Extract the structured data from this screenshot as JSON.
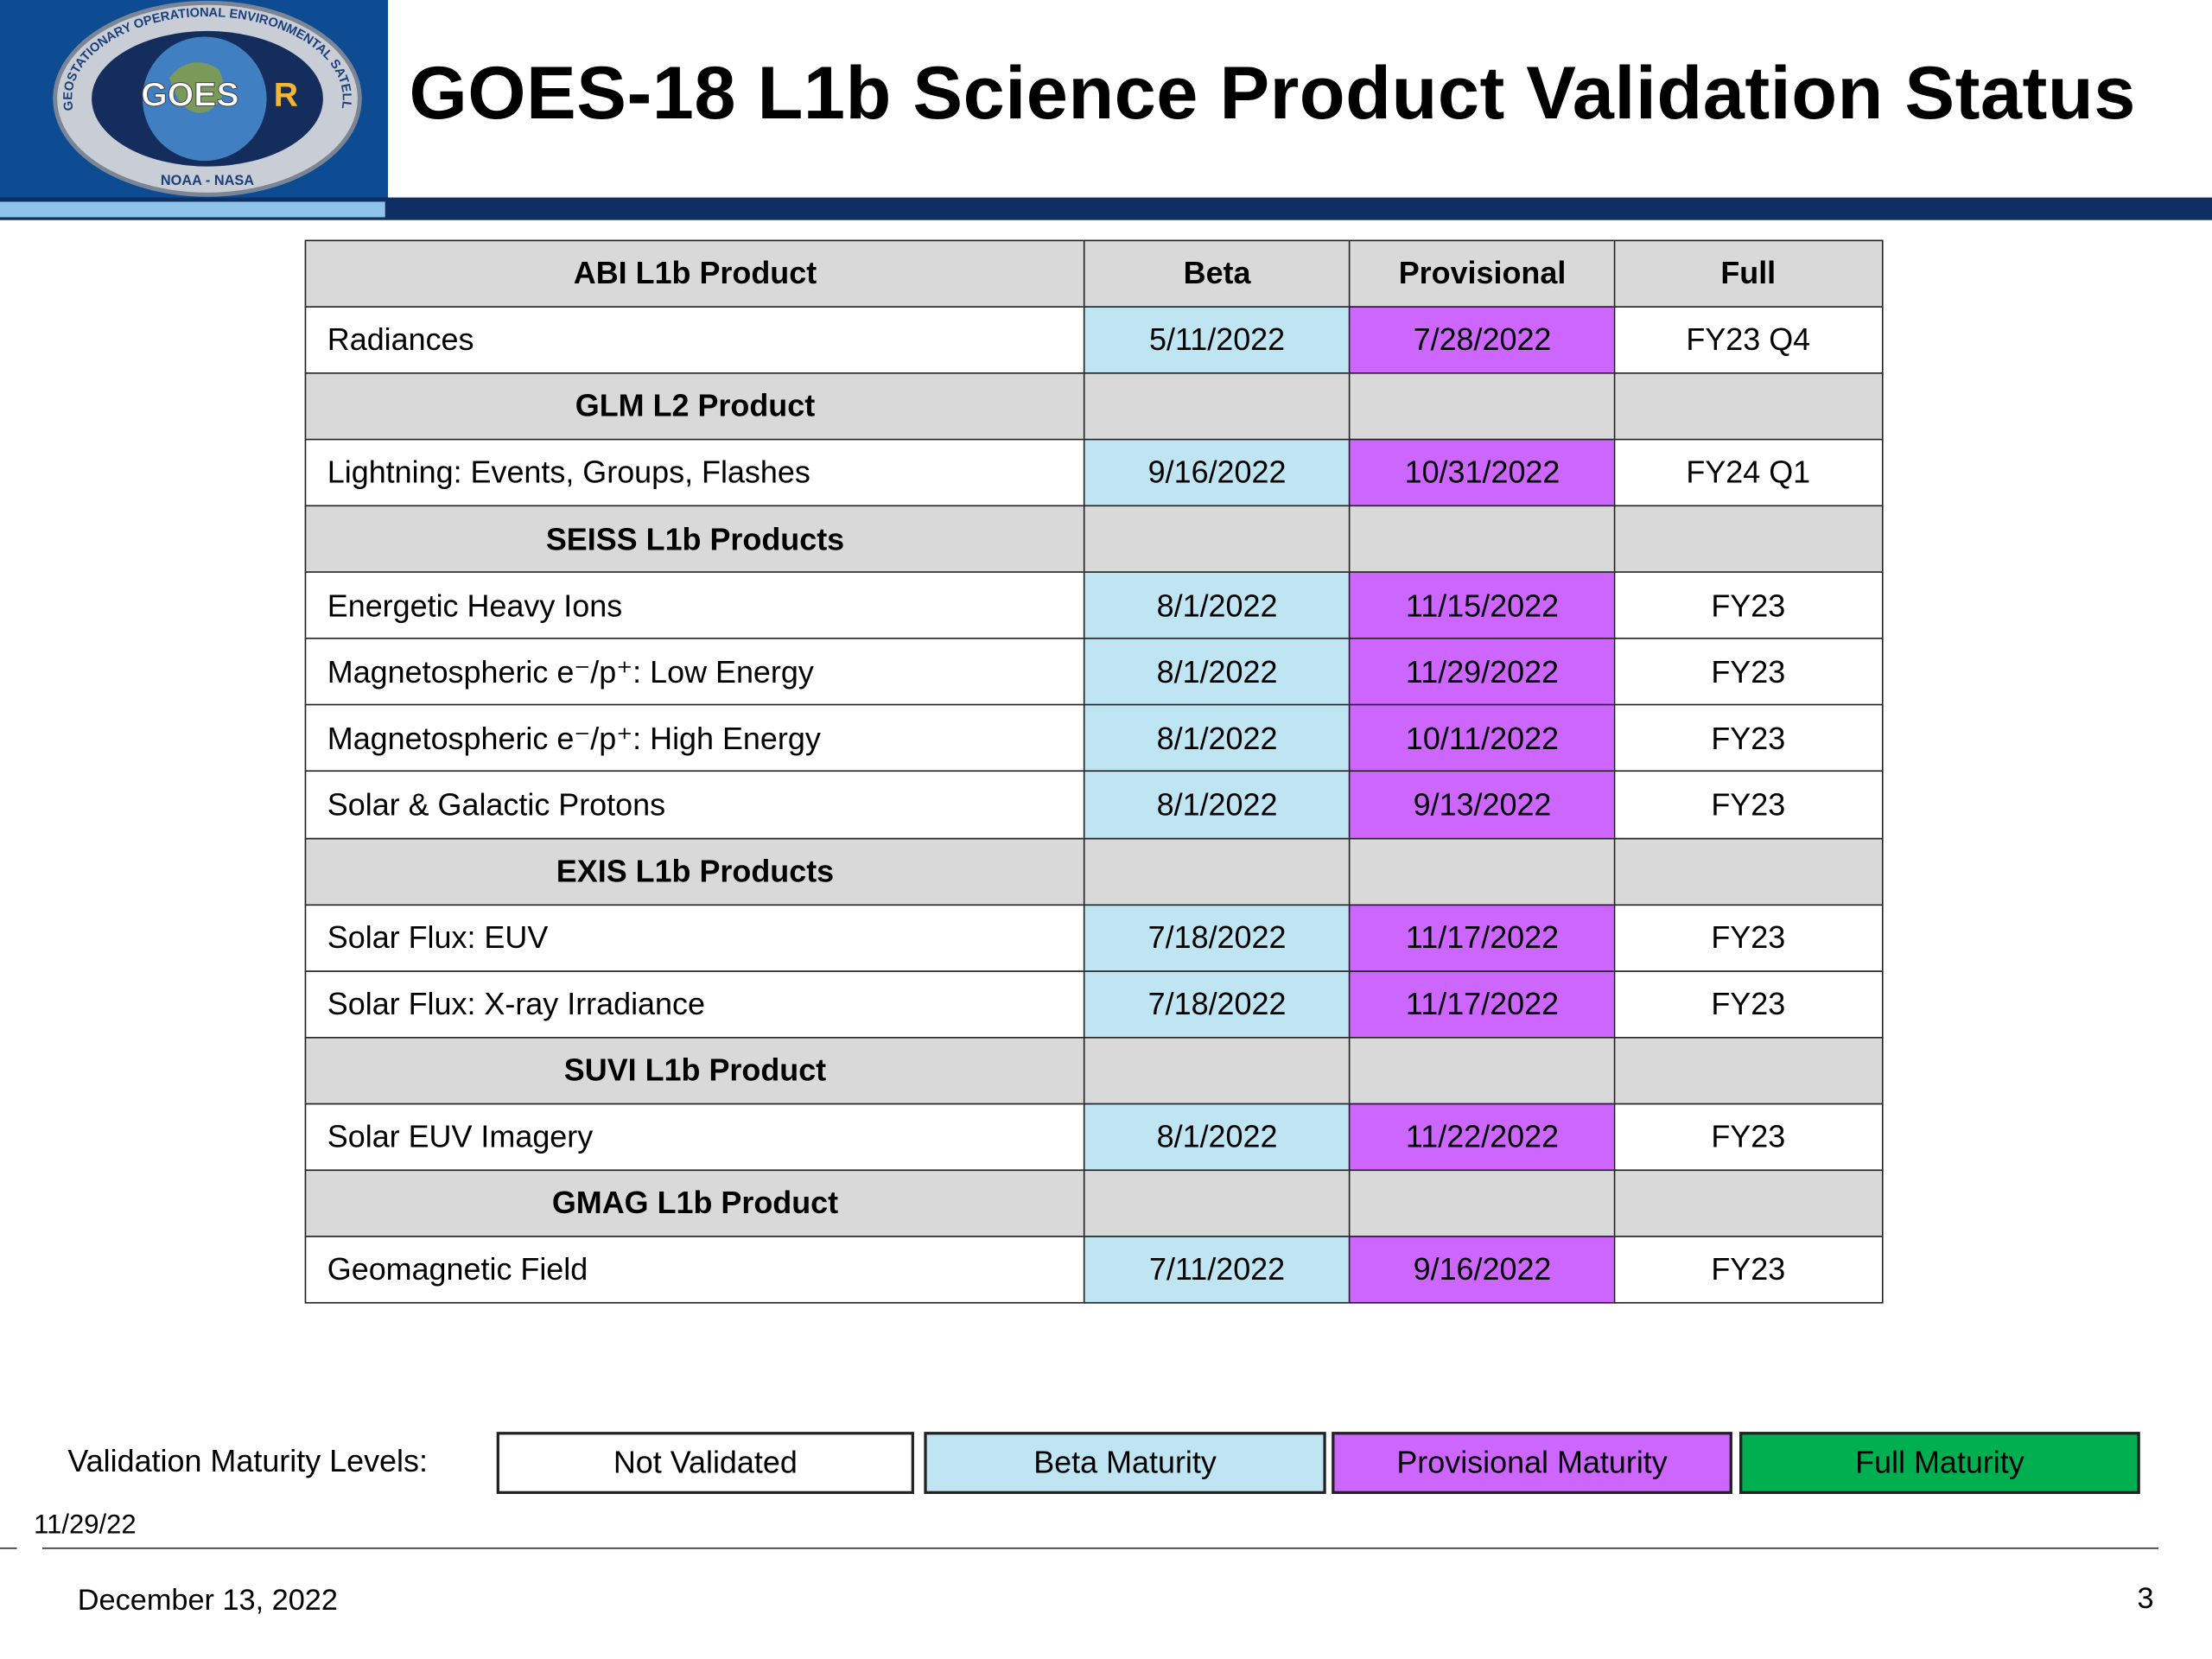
{
  "header": {
    "title": "GOES-18 L1b Science Product Validation Status"
  },
  "logo": {
    "main": "GOES",
    "accent": "R",
    "agencies": "NOAA - NASA",
    "ring": "GEOSTATIONARY OPERATIONAL ENVIRONMENTAL SATELLITE-R SERIES"
  },
  "table": {
    "header": [
      "Beta",
      "Provisional",
      "Full"
    ],
    "sections": [
      {
        "title": "ABI L1b Product",
        "rows": [
          [
            "Radiances",
            "5/11/2022",
            "7/28/2022",
            "FY23 Q4"
          ]
        ]
      },
      {
        "title": "GLM L2 Product",
        "rows": [
          [
            "Lightning: Events, Groups, Flashes",
            "9/16/2022",
            "10/31/2022",
            "FY24 Q1"
          ]
        ]
      },
      {
        "title": "SEISS L1b Products",
        "rows": [
          [
            "Energetic Heavy Ions",
            "8/1/2022",
            "11/15/2022",
            "FY23"
          ],
          [
            "Magnetospheric e⁻/p⁺: Low Energy",
            "8/1/2022",
            "11/29/2022",
            "FY23"
          ],
          [
            "Magnetospheric e⁻/p⁺: High Energy",
            "8/1/2022",
            "10/11/2022",
            "FY23"
          ],
          [
            "Solar & Galactic Protons",
            "8/1/2022",
            "9/13/2022",
            "FY23"
          ]
        ]
      },
      {
        "title": "EXIS L1b Products",
        "rows": [
          [
            "Solar Flux: EUV",
            "7/18/2022",
            "11/17/2022",
            "FY23"
          ],
          [
            "Solar Flux: X-ray Irradiance",
            "7/18/2022",
            "11/17/2022",
            "FY23"
          ]
        ]
      },
      {
        "title": "SUVI L1b Product",
        "rows": [
          [
            "Solar EUV Imagery",
            "8/1/2022",
            "11/22/2022",
            "FY23"
          ]
        ]
      },
      {
        "title": "GMAG L1b Product",
        "rows": [
          [
            "Geomagnetic Field",
            "7/11/2022",
            "9/16/2022",
            "FY23"
          ]
        ]
      }
    ]
  },
  "legend": {
    "label": "Validation Maturity Levels:",
    "items": [
      {
        "label": "Not Validated",
        "color": "#ffffff"
      },
      {
        "label": "Beta Maturity",
        "color": "#bfe4f2"
      },
      {
        "label": "Provisional Maturity",
        "color": "#cc66ff"
      },
      {
        "label": "Full Maturity",
        "color": "#00b050"
      }
    ]
  },
  "footer": {
    "stamp": "11/29/22",
    "date": "December 13, 2022",
    "page": "3"
  }
}
